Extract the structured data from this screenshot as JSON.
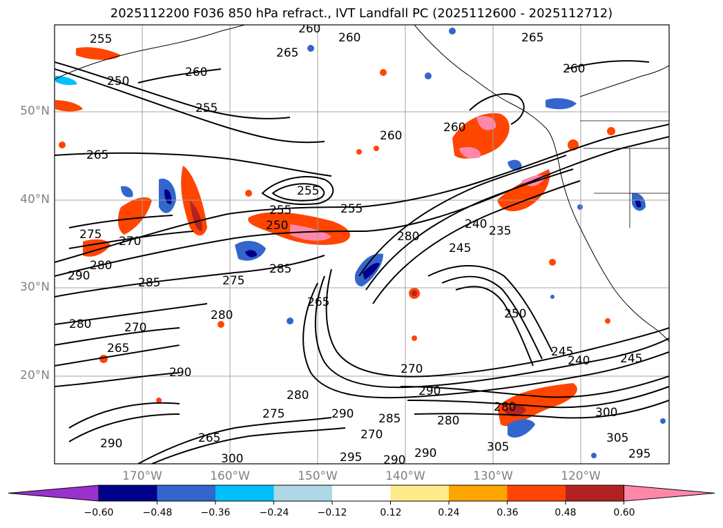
{
  "title": "2025112200 F036 850 hPa refract., IVT Landfall PC (2025112600 - 2025112712)",
  "lat_labels": [
    "50°N",
    "40°N",
    "30°N",
    "20°N"
  ],
  "lon_labels": [
    "170°W",
    "160°W",
    "150°W",
    "140°W",
    "130°W",
    "120°W"
  ],
  "colorbar": {
    "ticks": [
      "−0.60",
      "−0.48",
      "−0.36",
      "−0.24",
      "−0.12",
      "0.12",
      "0.24",
      "0.36",
      "0.48",
      "0.60"
    ],
    "colors": [
      "#9932cc",
      "#00008b",
      "#3366cc",
      "#00bfff",
      "#add8e6",
      "#ffffff",
      "#ffeb8c",
      "#ffa500",
      "#ff4500",
      "#b22222",
      "#ff88aa"
    ]
  },
  "contour_labels": [
    "255",
    "260",
    "260",
    "265",
    "260",
    "250",
    "255",
    "260",
    "260",
    "265",
    "260",
    "265",
    "255",
    "255",
    "250",
    "255",
    "280",
    "245",
    "235",
    "240",
    "275",
    "270",
    "280",
    "290",
    "285",
    "275",
    "280",
    "285",
    "265",
    "270",
    "265",
    "280",
    "250",
    "245",
    "240",
    "245",
    "290",
    "280",
    "270",
    "290",
    "285",
    "280",
    "290",
    "300",
    "305",
    "300",
    "295",
    "290",
    "290",
    "295",
    "270",
    "280",
    "275",
    "290",
    "265",
    "305"
  ]
}
